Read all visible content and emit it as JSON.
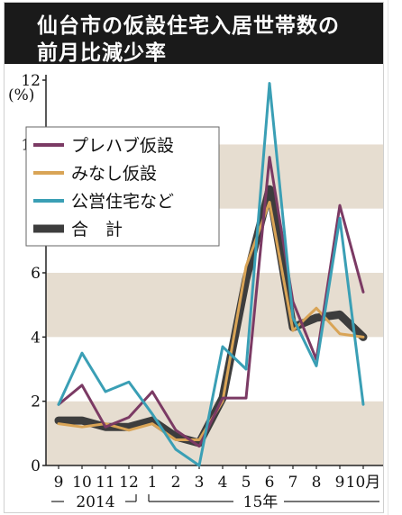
{
  "header": {
    "title_line1": "仙台市の仮設住宅入居世帯数の",
    "title_line2": "前月比減少率"
  },
  "chart_data": {
    "type": "line",
    "title": "仙台市の仮設住宅入居世帯数の前月比減少率",
    "y_unit_label": "(%)",
    "ylim": [
      0,
      12
    ],
    "y_ticks": [
      "0",
      "2",
      "4",
      "6",
      "8",
      "10",
      "12"
    ],
    "categories": [
      "9",
      "10",
      "11",
      "12",
      "1",
      "2",
      "3",
      "4",
      "5",
      "6",
      "7",
      "8",
      "9",
      "10月"
    ],
    "period_labels": {
      "year_2014": "2014",
      "year_15": "15年"
    },
    "grid": "alternating horizontal bands",
    "legend_position": "upper-left",
    "series": [
      {
        "name": "プレハブ仮設",
        "color": "#7b3a64",
        "values": [
          1.9,
          2.5,
          1.2,
          1.5,
          2.3,
          1.1,
          0.6,
          2.1,
          2.1,
          9.6,
          5.1,
          3.3,
          8.1,
          5.4
        ]
      },
      {
        "name": "みなし仮設",
        "color": "#d9a456",
        "values": [
          1.3,
          1.2,
          1.3,
          1.1,
          1.3,
          0.8,
          0.8,
          2.0,
          6.2,
          8.2,
          4.2,
          4.9,
          4.1,
          4.0
        ]
      },
      {
        "name": "公営住宅など",
        "color": "#3a9fb5",
        "values": [
          1.9,
          3.5,
          2.3,
          2.6,
          1.6,
          0.5,
          0.0,
          3.7,
          3.0,
          11.9,
          4.6,
          3.1,
          7.7,
          1.9
        ]
      },
      {
        "name": "合　計",
        "color": "#3d3d3d",
        "values": [
          1.4,
          1.4,
          1.2,
          1.2,
          1.4,
          0.9,
          0.7,
          2.1,
          5.8,
          8.6,
          4.3,
          4.6,
          4.7,
          4.0
        ]
      }
    ]
  }
}
